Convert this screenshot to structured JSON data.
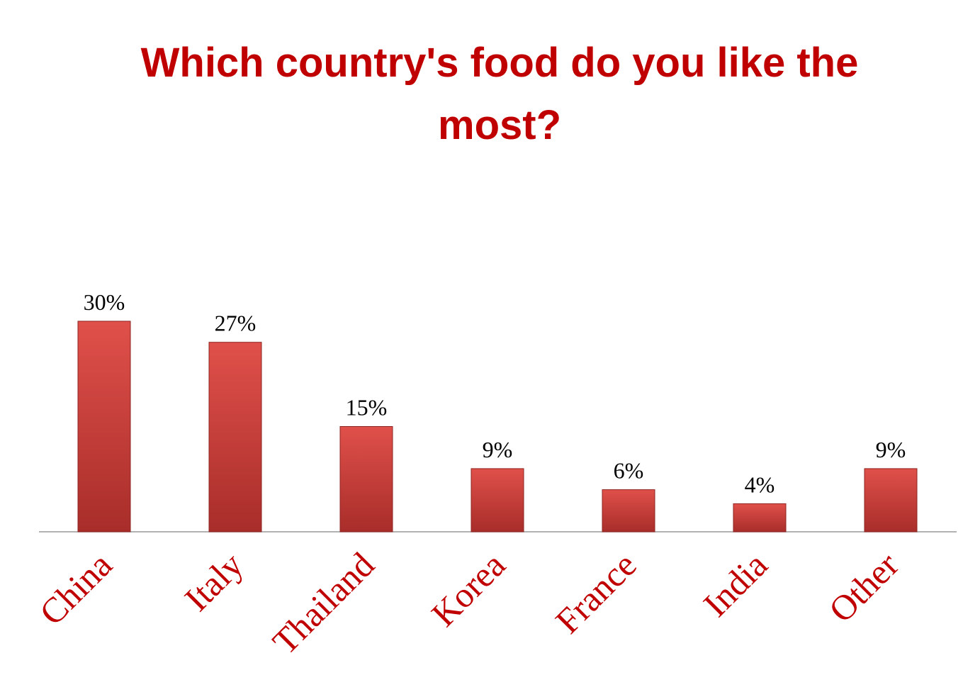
{
  "chart_data": {
    "type": "bar",
    "title": "Which country's food do you like the most?",
    "categories": [
      "China",
      "Italy",
      "Thailand",
      "Korea",
      "France",
      "India",
      "Other"
    ],
    "values": [
      30,
      27,
      15,
      9,
      6,
      4,
      9
    ],
    "value_labels": [
      "30%",
      "27%",
      "15%",
      "9%",
      "6%",
      "4%",
      "9%"
    ],
    "color": "#c9302c"
  }
}
